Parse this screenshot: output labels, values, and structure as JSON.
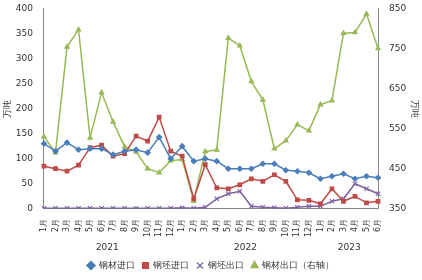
{
  "chart_data": {
    "type": "line",
    "y_label": "万吨",
    "y2_label": "万吨",
    "categories": [
      "1月",
      "2月",
      "3月",
      "4月",
      "5月",
      "6月",
      "7月",
      "8月",
      "9月",
      "10月",
      "11月",
      "12月",
      "1月",
      "2月",
      "3月",
      "4月",
      "5月",
      "6月",
      "7月",
      "8月",
      "9月",
      "10月",
      "11月",
      "12月",
      "1月",
      "2月",
      "3月",
      "4月",
      "5月",
      "6月"
    ],
    "category_groups": [
      {
        "label": "2021",
        "span": 12
      },
      {
        "label": "2022",
        "span": 12
      },
      {
        "label": "2023",
        "span": 6
      }
    ],
    "series": [
      {
        "name": "钢材进口",
        "color": "#4a7ebb",
        "marker": "diamond",
        "axis": "y",
        "values": [
          130,
          115,
          132,
          118,
          120,
          120,
          108,
          115,
          118,
          112,
          143,
          100,
          125,
          95,
          100,
          95,
          80,
          80,
          80,
          90,
          90,
          77,
          75,
          72,
          60,
          65,
          70,
          60,
          65,
          62
        ]
      },
      {
        "name": "钢坯进口",
        "color": "#be4b48",
        "marker": "square",
        "axis": "y",
        "values": [
          85,
          80,
          75,
          87,
          122,
          127,
          105,
          110,
          145,
          135,
          183,
          115,
          105,
          20,
          88,
          42,
          40,
          48,
          60,
          55,
          68,
          55,
          18,
          17,
          10,
          40,
          15,
          25,
          12,
          15
        ]
      },
      {
        "name": "钢坯出口",
        "color": "#7d60a0",
        "marker": "x",
        "axis": "y",
        "values": [
          1,
          1,
          1,
          1,
          1,
          1,
          1,
          1,
          1,
          1,
          1,
          1,
          2,
          1,
          3,
          20,
          30,
          35,
          5,
          3,
          2,
          1,
          3,
          5,
          5,
          15,
          20,
          50,
          40,
          30
        ]
      },
      {
        "name": "钢材出口（右轴）",
        "color": "#98b954",
        "marker": "triangle",
        "axis": "y2",
        "values": [
          530,
          490,
          754,
          797,
          527,
          640,
          567,
          505,
          492,
          450,
          440,
          470,
          473,
          370,
          493,
          497,
          776,
          757,
          668,
          622,
          500,
          520,
          560,
          545,
          610,
          620,
          788,
          790,
          836,
          750
        ]
      }
    ],
    "ylim": [
      0,
      400
    ],
    "yticks": [
      0,
      50,
      100,
      150,
      200,
      250,
      300,
      350,
      400
    ],
    "y2lim": [
      350,
      850
    ],
    "y2ticks": [
      350,
      450,
      550,
      650,
      750,
      850
    ],
    "grid": false,
    "legend": "bottom"
  }
}
